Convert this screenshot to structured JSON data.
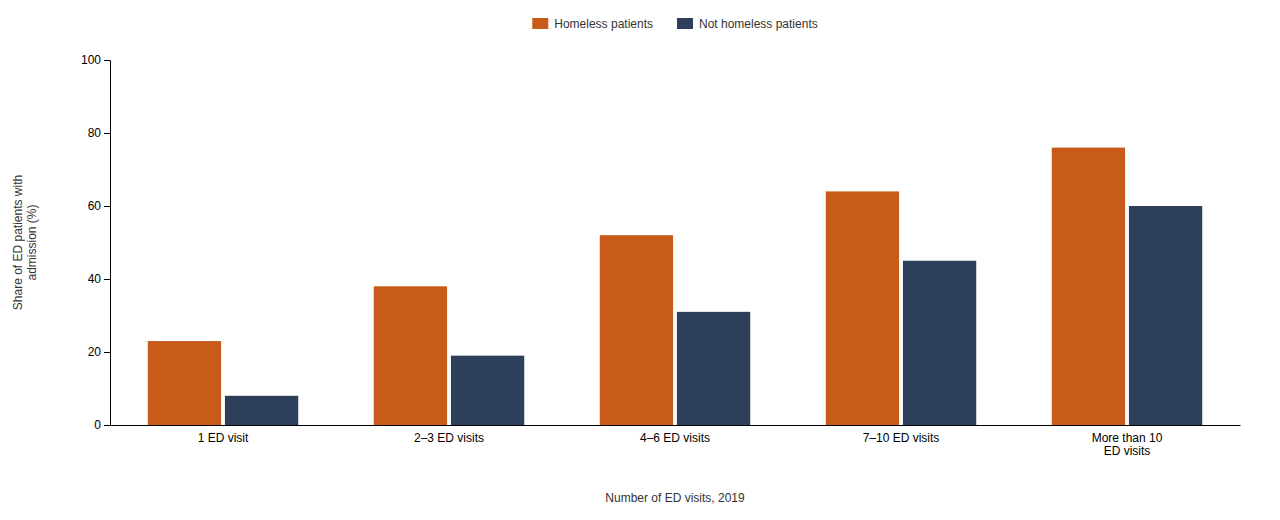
{
  "chart_data": {
    "type": "bar",
    "categories": [
      "1 ED visit",
      "2–3 ED visits",
      "4–6 ED visits",
      "7–10 ED visits",
      "More than 10\nED visits"
    ],
    "series": [
      {
        "name": "Homeless patients",
        "color": "#C95B1A",
        "values": [
          23,
          38,
          52,
          64,
          76
        ]
      },
      {
        "name": "Not homeless patients",
        "color": "#2E3F5C",
        "values": [
          8,
          19,
          31,
          45,
          60
        ]
      }
    ],
    "xlabel": "Number of ED visits, 2019",
    "ylabel": "Share of ED patients with\nadmission (%)",
    "ylim": [
      0,
      100
    ],
    "yticks": [
      0,
      20,
      40,
      60,
      80,
      100
    ],
    "grid": false,
    "legend": "top"
  }
}
